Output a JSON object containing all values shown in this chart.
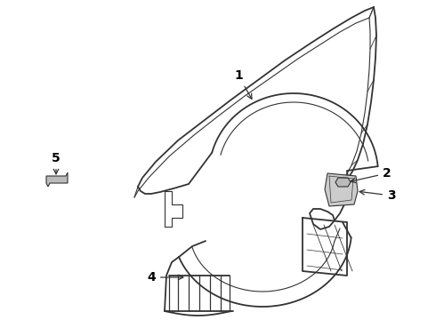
{
  "background_color": "#ffffff",
  "line_color": "#333333",
  "label_color": "#000000",
  "figsize": [
    4.9,
    3.6
  ],
  "dpi": 100,
  "label_fontsize": 10,
  "label_fontweight": "bold"
}
